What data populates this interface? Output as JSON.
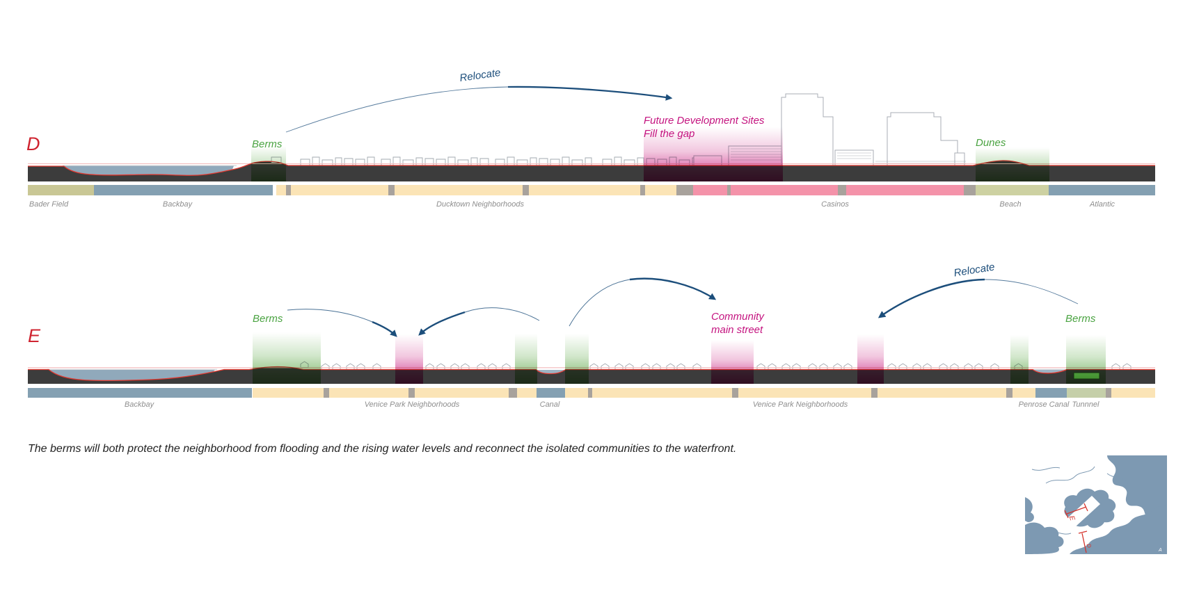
{
  "palette": {
    "section_letter": "#cf2430",
    "terrain_line": "#e0382f",
    "flood_line": "#f2b9ba",
    "ground": "#3c3c3c",
    "water": "#90a9bb",
    "green_label": "#4aa341",
    "magenta_label": "#c4137f",
    "arrow_blue": "#1c4e7b",
    "bar_yellow": "#fbe4b6",
    "bar_blue": "#84a0b2",
    "bar_olive": "#c9c795",
    "bar_beach": "#cdd1a2",
    "bar_tunnel": "#c5cfa9",
    "bar_pink": "#f492a9",
    "bar_gray": "#a8a29c",
    "bar_label_gray": "#8e8e8e"
  },
  "section_d": {
    "letter": "D",
    "relocate_label": "Relocate",
    "berms_label": "Berms",
    "dunes_label": "Dunes",
    "future_dev_line1": "Future Development Sites",
    "future_dev_line2": "Fill the gap",
    "bar_labels": {
      "bader_field": "Bader Field",
      "backbay": "Backbay",
      "ducktown": "Ducktown Neighborhoods",
      "casinos": "Casinos",
      "beach": "Beach",
      "atlantic": "Atlantic"
    }
  },
  "section_e": {
    "letter": "E",
    "berms_left_label": "Berms",
    "community_line1": "Community",
    "community_line2": "main street",
    "relocate_label": "Relocate",
    "berms_right_label": "Berms",
    "bar_labels": {
      "backbay": "Backbay",
      "venice_west": "Venice Park Neighborhoods",
      "canal": "Canal",
      "venice_east": "Venice Park Neighborhoods",
      "penrose": "Penrose Canal",
      "tunnel": "Tunnnel"
    }
  },
  "caption": "The berms will both protect the neighborhood from flooding and the rising water levels and reconnect the isolated communities to the waterfront.",
  "map": {
    "marker_e": "E",
    "marker_d": "D",
    "corner_label": "A"
  }
}
